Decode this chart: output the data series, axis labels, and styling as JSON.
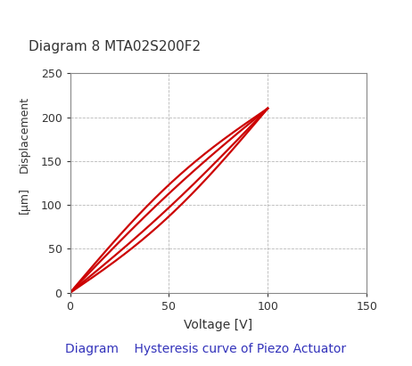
{
  "title": "Diagram 8 MTA02S200F2",
  "xlabel": "Voltage [V]",
  "xlim": [
    0,
    150
  ],
  "ylim": [
    0,
    250
  ],
  "xticks": [
    0,
    50,
    100,
    150
  ],
  "yticks": [
    0,
    50,
    100,
    150,
    200,
    250
  ],
  "curve_color": "#cc0000",
  "grid_color": "#999999",
  "background_color": "#ffffff",
  "caption": "Diagram    Hysteresis curve of Piezo Actuator",
  "caption_color": "#3333bb",
  "ylabel_top": "Displacement",
  "ylabel_bot": "[μm]"
}
